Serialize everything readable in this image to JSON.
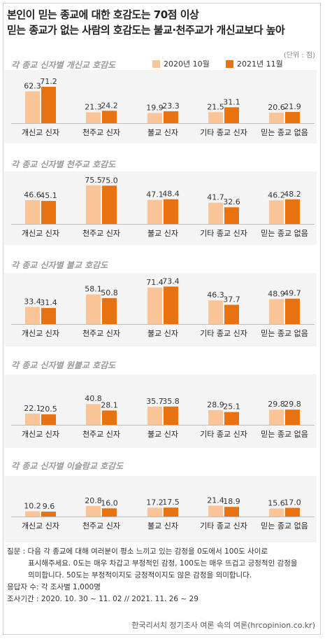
{
  "header": {
    "line1": "본인이 믿는 종교에 대한 호감도는 70점 이상",
    "line2": "믿는 종교가 없는 사람의 호감도는 불교·천주교가 개신교보다 높아"
  },
  "unit_label": "(단위 : 점)",
  "legend": [
    {
      "name": "2020년 10월",
      "color": "#f8c498"
    },
    {
      "name": "2021년 11월",
      "color": "#e8720f"
    }
  ],
  "chart_data": [
    {
      "type": "bar",
      "title": "각 종교 신자별 개신교 호감도",
      "categories": [
        "개신교 신자",
        "천주교 신자",
        "불교 신자",
        "기타 종교 신자",
        "믿는 종교 없음"
      ],
      "series": [
        {
          "name": "2020년 10월",
          "values": [
            62.3,
            21.3,
            19.9,
            21.5,
            20.6
          ]
        },
        {
          "name": "2021년 11월",
          "values": [
            71.2,
            24.2,
            23.3,
            31.1,
            21.9
          ]
        }
      ],
      "ylim": [
        0,
        100
      ]
    },
    {
      "type": "bar",
      "title": "각 종교 신자별 천주교 호감도",
      "categories": [
        "개신교 신자",
        "천주교 신자",
        "불교 신자",
        "기타 종교 신자",
        "믿는 종교 없음"
      ],
      "series": [
        {
          "name": "2020년 10월",
          "values": [
            46.6,
            75.5,
            47.1,
            41.7,
            46.2
          ]
        },
        {
          "name": "2021년 11월",
          "values": [
            45.1,
            75.0,
            48.4,
            32.6,
            48.2
          ]
        }
      ],
      "ylim": [
        0,
        100
      ]
    },
    {
      "type": "bar",
      "title": "각 종교 신자별 불교 호감도",
      "categories": [
        "개신교 신자",
        "천주교 신자",
        "불교 신자",
        "기타 종교 신자",
        "믿는 종교 없음"
      ],
      "series": [
        {
          "name": "2020년 10월",
          "values": [
            33.4,
            58.1,
            71.4,
            46.3,
            48.9
          ]
        },
        {
          "name": "2021년 11월",
          "values": [
            31.4,
            50.8,
            73.4,
            37.7,
            49.7
          ]
        }
      ],
      "ylim": [
        0,
        100
      ]
    },
    {
      "type": "bar",
      "title": "각 종교 신자별 원불교 호감도",
      "categories": [
        "개신교 신자",
        "천주교 신자",
        "불교 신자",
        "기타 종교 신자",
        "믿는 종교 없음"
      ],
      "series": [
        {
          "name": "2020년 10월",
          "values": [
            22.1,
            40.8,
            35.7,
            28.9,
            29.8
          ]
        },
        {
          "name": "2021년 11월",
          "values": [
            20.5,
            28.1,
            35.8,
            25.1,
            29.8
          ]
        }
      ],
      "ylim": [
        0,
        100
      ]
    },
    {
      "type": "bar",
      "title": "각 종교 신자별 이슬람교 호감도",
      "categories": [
        "개신교 신자",
        "천주교 신자",
        "불교 신자",
        "기타 종교 신자",
        "믿는 종교 없음"
      ],
      "series": [
        {
          "name": "2020년 10월",
          "values": [
            10.2,
            20.8,
            17.2,
            21.4,
            15.6
          ]
        },
        {
          "name": "2021년 11월",
          "values": [
            9.6,
            16.0,
            17.5,
            18.9,
            17.0
          ]
        }
      ],
      "ylim": [
        0,
        100
      ]
    }
  ],
  "notes": {
    "q1": "질문 : 다음 각 종교에 대해 여러분이 평소 느끼고 있는 감정을 0도에서 100도 사이로",
    "q2": "표시해주세요. 0도는 매우 차갑고 부정적인 감정, 100도는 매우 뜨겁고 긍정적인 감정을",
    "q3": "의미합니다. 50도는 부정적이지도 긍정적이지도 않은 감정을 의미합니다.",
    "respondents": "응답자 수: 각 조사별 1,000명",
    "period": "조사기간 : 2020. 10. 30 ~ 11. 02 // 2021. 11. 26 ~ 29"
  },
  "source": "한국리서치 정기조사 여론 속의 여론(hrcopinion.co.kr)"
}
